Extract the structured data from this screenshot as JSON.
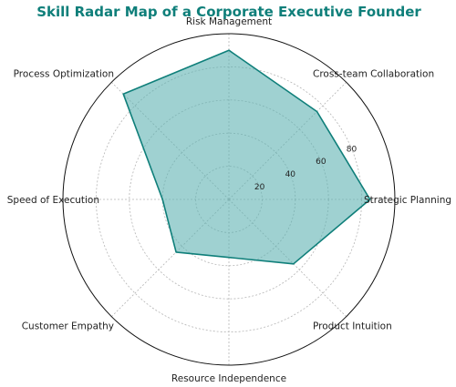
{
  "chart_data": {
    "type": "radar",
    "title": "Skill Radar Map of a Corporate Executive Founder",
    "categories": [
      "Strategic Planning",
      "Cross-team Collaboration",
      "Risk Management",
      "Process Optimization",
      "Speed of Execution",
      "Customer Empathy",
      "Resource Independence",
      "Product Intuition"
    ],
    "series": [
      {
        "values": [
          85,
          75,
          90,
          90,
          40,
          45,
          35,
          55
        ],
        "color": "#0f7f7a",
        "fill": "#5fb3b3"
      }
    ],
    "rlim": [
      0,
      100
    ],
    "rticks": [
      20,
      40,
      60,
      80
    ],
    "rtick_labels": [
      "20",
      "40",
      "60",
      "80"
    ],
    "grid": true,
    "colors": {
      "title": "#0f7f7a",
      "line": "#0f7f7a",
      "fill": "#5fb3b3"
    }
  }
}
